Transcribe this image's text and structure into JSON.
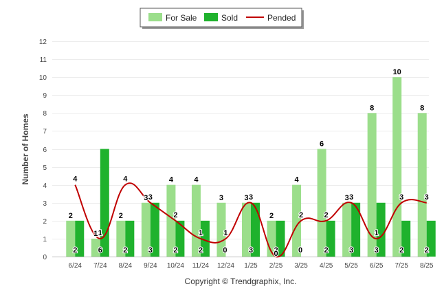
{
  "chart_data": {
    "type": "bar",
    "title": "",
    "xlabel": "",
    "ylabel": "Number of Homes",
    "ylim": [
      0,
      12
    ],
    "yticks": [
      0,
      1,
      2,
      3,
      4,
      5,
      6,
      7,
      8,
      9,
      10,
      11,
      12
    ],
    "grid": true,
    "legend_position": "top-center",
    "categories": [
      "6/24",
      "7/24",
      "8/24",
      "9/24",
      "10/24",
      "11/24",
      "12/24",
      "1/25",
      "2/25",
      "3/25",
      "4/25",
      "5/25",
      "6/25",
      "7/25",
      "8/25"
    ],
    "series": [
      {
        "name": "For Sale",
        "kind": "bar",
        "color": "#9bde8b",
        "values": [
          2,
          1,
          2,
          3,
          4,
          4,
          3,
          3,
          2,
          4,
          6,
          3,
          8,
          10,
          8
        ],
        "label_values": [
          "2",
          "1",
          "2",
          "3",
          "4",
          "4",
          "3",
          "3",
          "2",
          "4",
          "6",
          "3",
          "8",
          "10",
          "8"
        ]
      },
      {
        "name": "Sold",
        "kind": "bar",
        "color": "#1fb22d",
        "values": [
          2,
          6,
          2,
          3,
          2,
          2,
          0,
          3,
          2,
          0,
          2,
          3,
          3,
          2,
          2
        ],
        "label_values": [
          "2",
          "6",
          "2",
          "3",
          "2",
          "2",
          "0",
          "3",
          "2",
          "0",
          "2",
          "3",
          "3",
          "2",
          "2"
        ]
      },
      {
        "name": "Pended",
        "kind": "line",
        "color": "#c00000",
        "values": [
          4,
          1,
          4,
          3,
          2,
          1,
          1,
          3,
          0,
          2,
          2,
          3,
          1,
          3,
          3
        ],
        "label_values": [
          "4",
          "1",
          "4",
          "3",
          "2",
          "1",
          "1",
          "3",
          "0",
          "2",
          "2",
          "3",
          "1",
          "3",
          "3"
        ]
      }
    ]
  },
  "footer": {
    "credit": "Copyright © Trendgraphix, Inc."
  }
}
